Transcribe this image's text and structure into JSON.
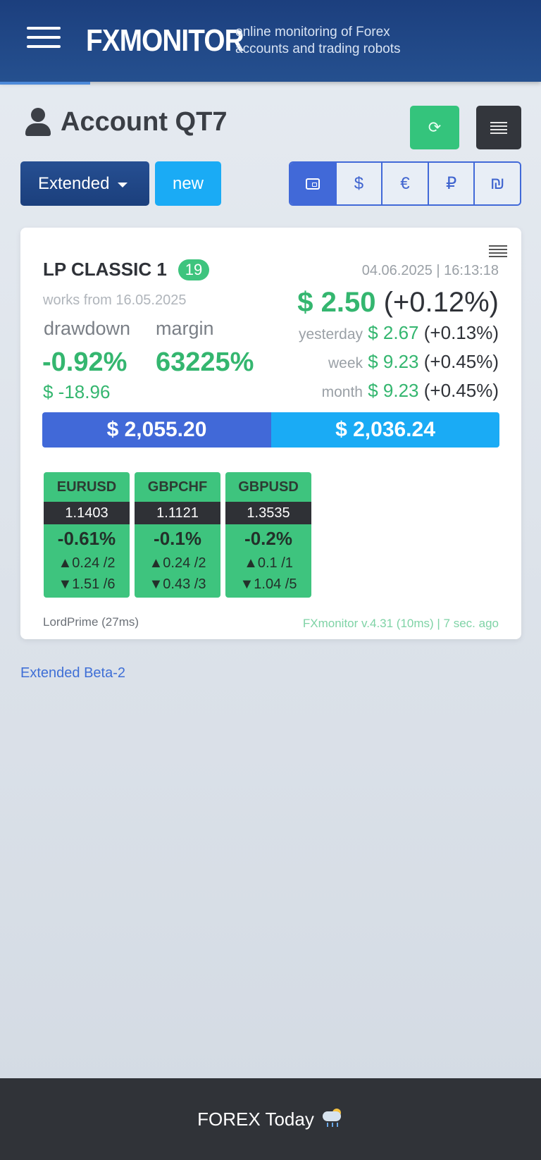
{
  "header": {
    "logo": "FXMONITOR",
    "tagline": "online monitoring of Forex accounts and trading robots"
  },
  "page": {
    "title": "Account QT7"
  },
  "toolbar": {
    "extended_label": "Extended",
    "new_label": "new",
    "currencies": [
      "$",
      "€",
      "₽",
      "₪"
    ]
  },
  "account": {
    "name": "LP CLASSIC 1",
    "badge": "19",
    "timestamp": "04.06.2025 | 16:13:18",
    "works_from": "works from 16.05.2025",
    "profit": "$ 2.50",
    "profit_pct": "(+0.12%)",
    "drawdown_label": "drawdown",
    "margin_label": "margin",
    "drawdown_value": "-0.92%",
    "margin_value": "63225%",
    "drawdown_money": "$ -18.96",
    "periods": [
      {
        "label": "yesterday",
        "value": "$ 2.67",
        "pct": "(+0.13%)"
      },
      {
        "label": "week",
        "value": "$ 9.23",
        "pct": "(+0.45%)"
      },
      {
        "label": "month",
        "value": "$ 9.23",
        "pct": "(+0.45%)"
      }
    ],
    "balance": "$ 2,055.20",
    "equity": "$ 2,036.24",
    "pairs": [
      {
        "symbol": "EURUSD",
        "price": "1.1403",
        "change": "-0.61%",
        "up": "▲0.24 /2",
        "down": "▼1.51 /6"
      },
      {
        "symbol": "GBPCHF",
        "price": "1.1121",
        "change": "-0.1%",
        "up": "▲0.24 /2",
        "down": "▼0.43 /3"
      },
      {
        "symbol": "GBPUSD",
        "price": "1.3535",
        "change": "-0.2%",
        "up": "▲0.1 /1",
        "down": "▼1.04 /5"
      }
    ],
    "broker": "LordPrime (27ms)",
    "version": "FXmonitor v.4.31 (10ms) | 7 sec. ago"
  },
  "links": {
    "beta": "Extended Beta-2"
  },
  "footer": {
    "label": "FOREX Today"
  },
  "colors": {
    "header": "#1c3f7e",
    "accent_green": "#34b66f",
    "accent_blue": "#4169d8",
    "accent_cyan": "#1aabf5"
  }
}
